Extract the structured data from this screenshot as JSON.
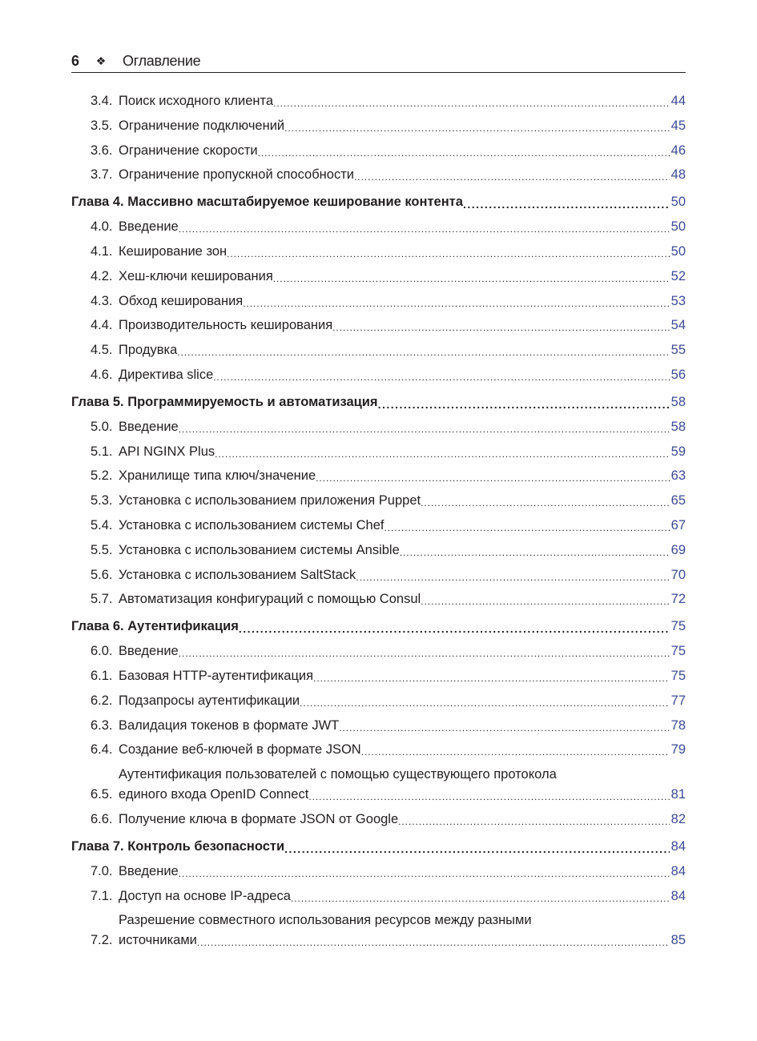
{
  "header": {
    "page_number": "6",
    "ornament_icon": "four-diamond-ornament",
    "title": "Оглавление"
  },
  "colors": {
    "page_number": "#3b4a96",
    "text": "#231f20"
  },
  "entries": [
    {
      "type": "sub",
      "num": "3.4.",
      "title": "Поиск исходного клиента",
      "page": "44"
    },
    {
      "type": "sub",
      "num": "3.5.",
      "title": "Ограничение подключений",
      "page": "45"
    },
    {
      "type": "sub",
      "num": "3.6.",
      "title": "Ограничение скорости",
      "page": "46"
    },
    {
      "type": "sub",
      "num": "3.7.",
      "title": "Ограничение пропускной способности",
      "page": "48"
    },
    {
      "type": "chapter",
      "title": "Глава 4. Массивно масштабируемое кеширование контента",
      "page": "50"
    },
    {
      "type": "sub",
      "num": "4.0.",
      "title": "Введение",
      "page": "50"
    },
    {
      "type": "sub",
      "num": "4.1.",
      "title": "Кеширование зон",
      "page": "50"
    },
    {
      "type": "sub",
      "num": "4.2.",
      "title": "Хеш-ключи кеширования",
      "page": "52"
    },
    {
      "type": "sub",
      "num": "4.3.",
      "title": "Обход кеширования",
      "page": "53"
    },
    {
      "type": "sub",
      "num": "4.4.",
      "title": "Производительность кеширования",
      "page": "54"
    },
    {
      "type": "sub",
      "num": "4.5.",
      "title": "Продувка",
      "page": "55"
    },
    {
      "type": "sub",
      "num": "4.6.",
      "title": "Директива slice",
      "page": "56"
    },
    {
      "type": "chapter",
      "title": "Глава 5. Программируемость и автоматизация",
      "page": "58"
    },
    {
      "type": "sub",
      "num": "5.0.",
      "title": "Введение",
      "page": "58"
    },
    {
      "type": "sub",
      "num": "5.1.",
      "title": "API NGINX Plus",
      "page": "59"
    },
    {
      "type": "sub",
      "num": "5.2.",
      "title": "Хранилище типа ключ/значение",
      "page": "63"
    },
    {
      "type": "sub",
      "num": "5.3.",
      "title": "Установка с использованием приложения Puppet",
      "page": "65"
    },
    {
      "type": "sub",
      "num": "5.4.",
      "title": "Установка с использованием системы Chef",
      "page": "67"
    },
    {
      "type": "sub",
      "num": "5.5.",
      "title": "Установка с использованием системы Ansible",
      "page": "69"
    },
    {
      "type": "sub",
      "num": "5.6.",
      "title": "Установка с использованием SaltStack",
      "page": "70"
    },
    {
      "type": "sub",
      "num": "5.7.",
      "title": "Автоматизация конфигураций с помощью Consul",
      "page": "72"
    },
    {
      "type": "chapter",
      "title": "Глава 6. Аутентификация",
      "page": "75"
    },
    {
      "type": "sub",
      "num": "6.0.",
      "title": "Введение",
      "page": "75"
    },
    {
      "type": "sub",
      "num": "6.1.",
      "title": "Базовая HTTP-аутентификация",
      "page": "75"
    },
    {
      "type": "sub",
      "num": "6.2.",
      "title": "Подзапросы аутентификации",
      "page": "77"
    },
    {
      "type": "sub",
      "num": "6.3.",
      "title": "Валидация токенов в формате JWT",
      "page": "78"
    },
    {
      "type": "sub",
      "num": "6.4.",
      "title": "Создание веб-ключей в формате JSON",
      "page": "79"
    },
    {
      "type": "sub",
      "num": "6.5.",
      "title": "Аутентификация пользователей с помощью существующего протокола",
      "title2": "единого входа OpenID Connect",
      "page": "81"
    },
    {
      "type": "sub",
      "num": "6.6.",
      "title": "Получение ключа в формате JSON от Google",
      "page": "82"
    },
    {
      "type": "chapter",
      "title": "Глава 7. Контроль безопасности",
      "page": "84"
    },
    {
      "type": "sub",
      "num": "7.0.",
      "title": "Введение",
      "page": "84"
    },
    {
      "type": "sub",
      "num": "7.1.",
      "title": "Доступ на основе IP-адреса",
      "page": "84"
    },
    {
      "type": "sub",
      "num": "7.2.",
      "title": "Разрешение совместного использования ресурсов между разными",
      "title2": "источниками",
      "page": "85"
    }
  ]
}
